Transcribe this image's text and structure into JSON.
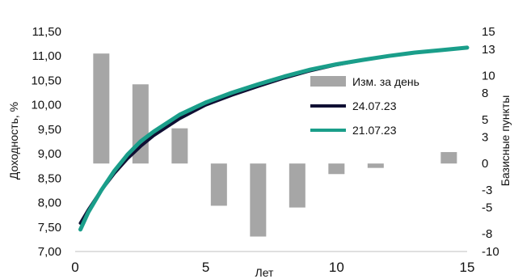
{
  "chart_data": {
    "type": "bar+line",
    "xlabel": "Лет",
    "ylabel": "Доходность, %",
    "y2label": "Базисные пункты",
    "xlim": [
      0,
      15
    ],
    "ylim": [
      7.0,
      11.5
    ],
    "y2lim": [
      -10,
      15
    ],
    "x_ticks": [
      "0",
      "5",
      "10",
      "15"
    ],
    "y_ticks": [
      "7,00",
      "7,50",
      "8,00",
      "8,50",
      "9,00",
      "9,50",
      "10,00",
      "10,50",
      "11,00",
      "11,50"
    ],
    "y2_ticks": [
      "-10",
      "-8",
      "-5",
      "-3",
      "0",
      "3",
      "5",
      "8",
      "10",
      "13",
      "15"
    ],
    "legend_position": "right-center",
    "bars": {
      "name": "Изм. за день",
      "color": "#a6a6a6",
      "axis": "right",
      "x": [
        1,
        2.5,
        4,
        5.5,
        7,
        8.5,
        10,
        11.5,
        13,
        14.3
      ],
      "values": [
        12.5,
        9,
        4,
        -4.8,
        -8.3,
        -5,
        -1.2,
        -0.5,
        0,
        1.3
      ]
    },
    "series": [
      {
        "name": "24.07.23",
        "color": "#0f0f33",
        "axis": "left",
        "x": [
          0.2,
          0.5,
          1,
          1.5,
          2,
          2.5,
          3,
          4,
          5,
          6,
          7,
          8,
          9,
          10,
          11,
          12,
          13,
          14,
          15
        ],
        "values": [
          7.58,
          7.85,
          8.25,
          8.6,
          8.9,
          9.15,
          9.37,
          9.72,
          10.0,
          10.2,
          10.38,
          10.55,
          10.7,
          10.82,
          10.92,
          11.0,
          11.07,
          11.12,
          11.17
        ]
      },
      {
        "name": "21.07.23",
        "color": "#1a9e8a",
        "axis": "left",
        "x": [
          0.2,
          0.5,
          1,
          1.5,
          2,
          2.5,
          3,
          4,
          5,
          6,
          7,
          8,
          9,
          10,
          11,
          12,
          13,
          14,
          15
        ],
        "values": [
          7.45,
          7.8,
          8.25,
          8.65,
          8.98,
          9.25,
          9.45,
          9.8,
          10.05,
          10.25,
          10.42,
          10.58,
          10.72,
          10.83,
          10.92,
          11.0,
          11.07,
          11.12,
          11.17
        ]
      }
    ]
  }
}
